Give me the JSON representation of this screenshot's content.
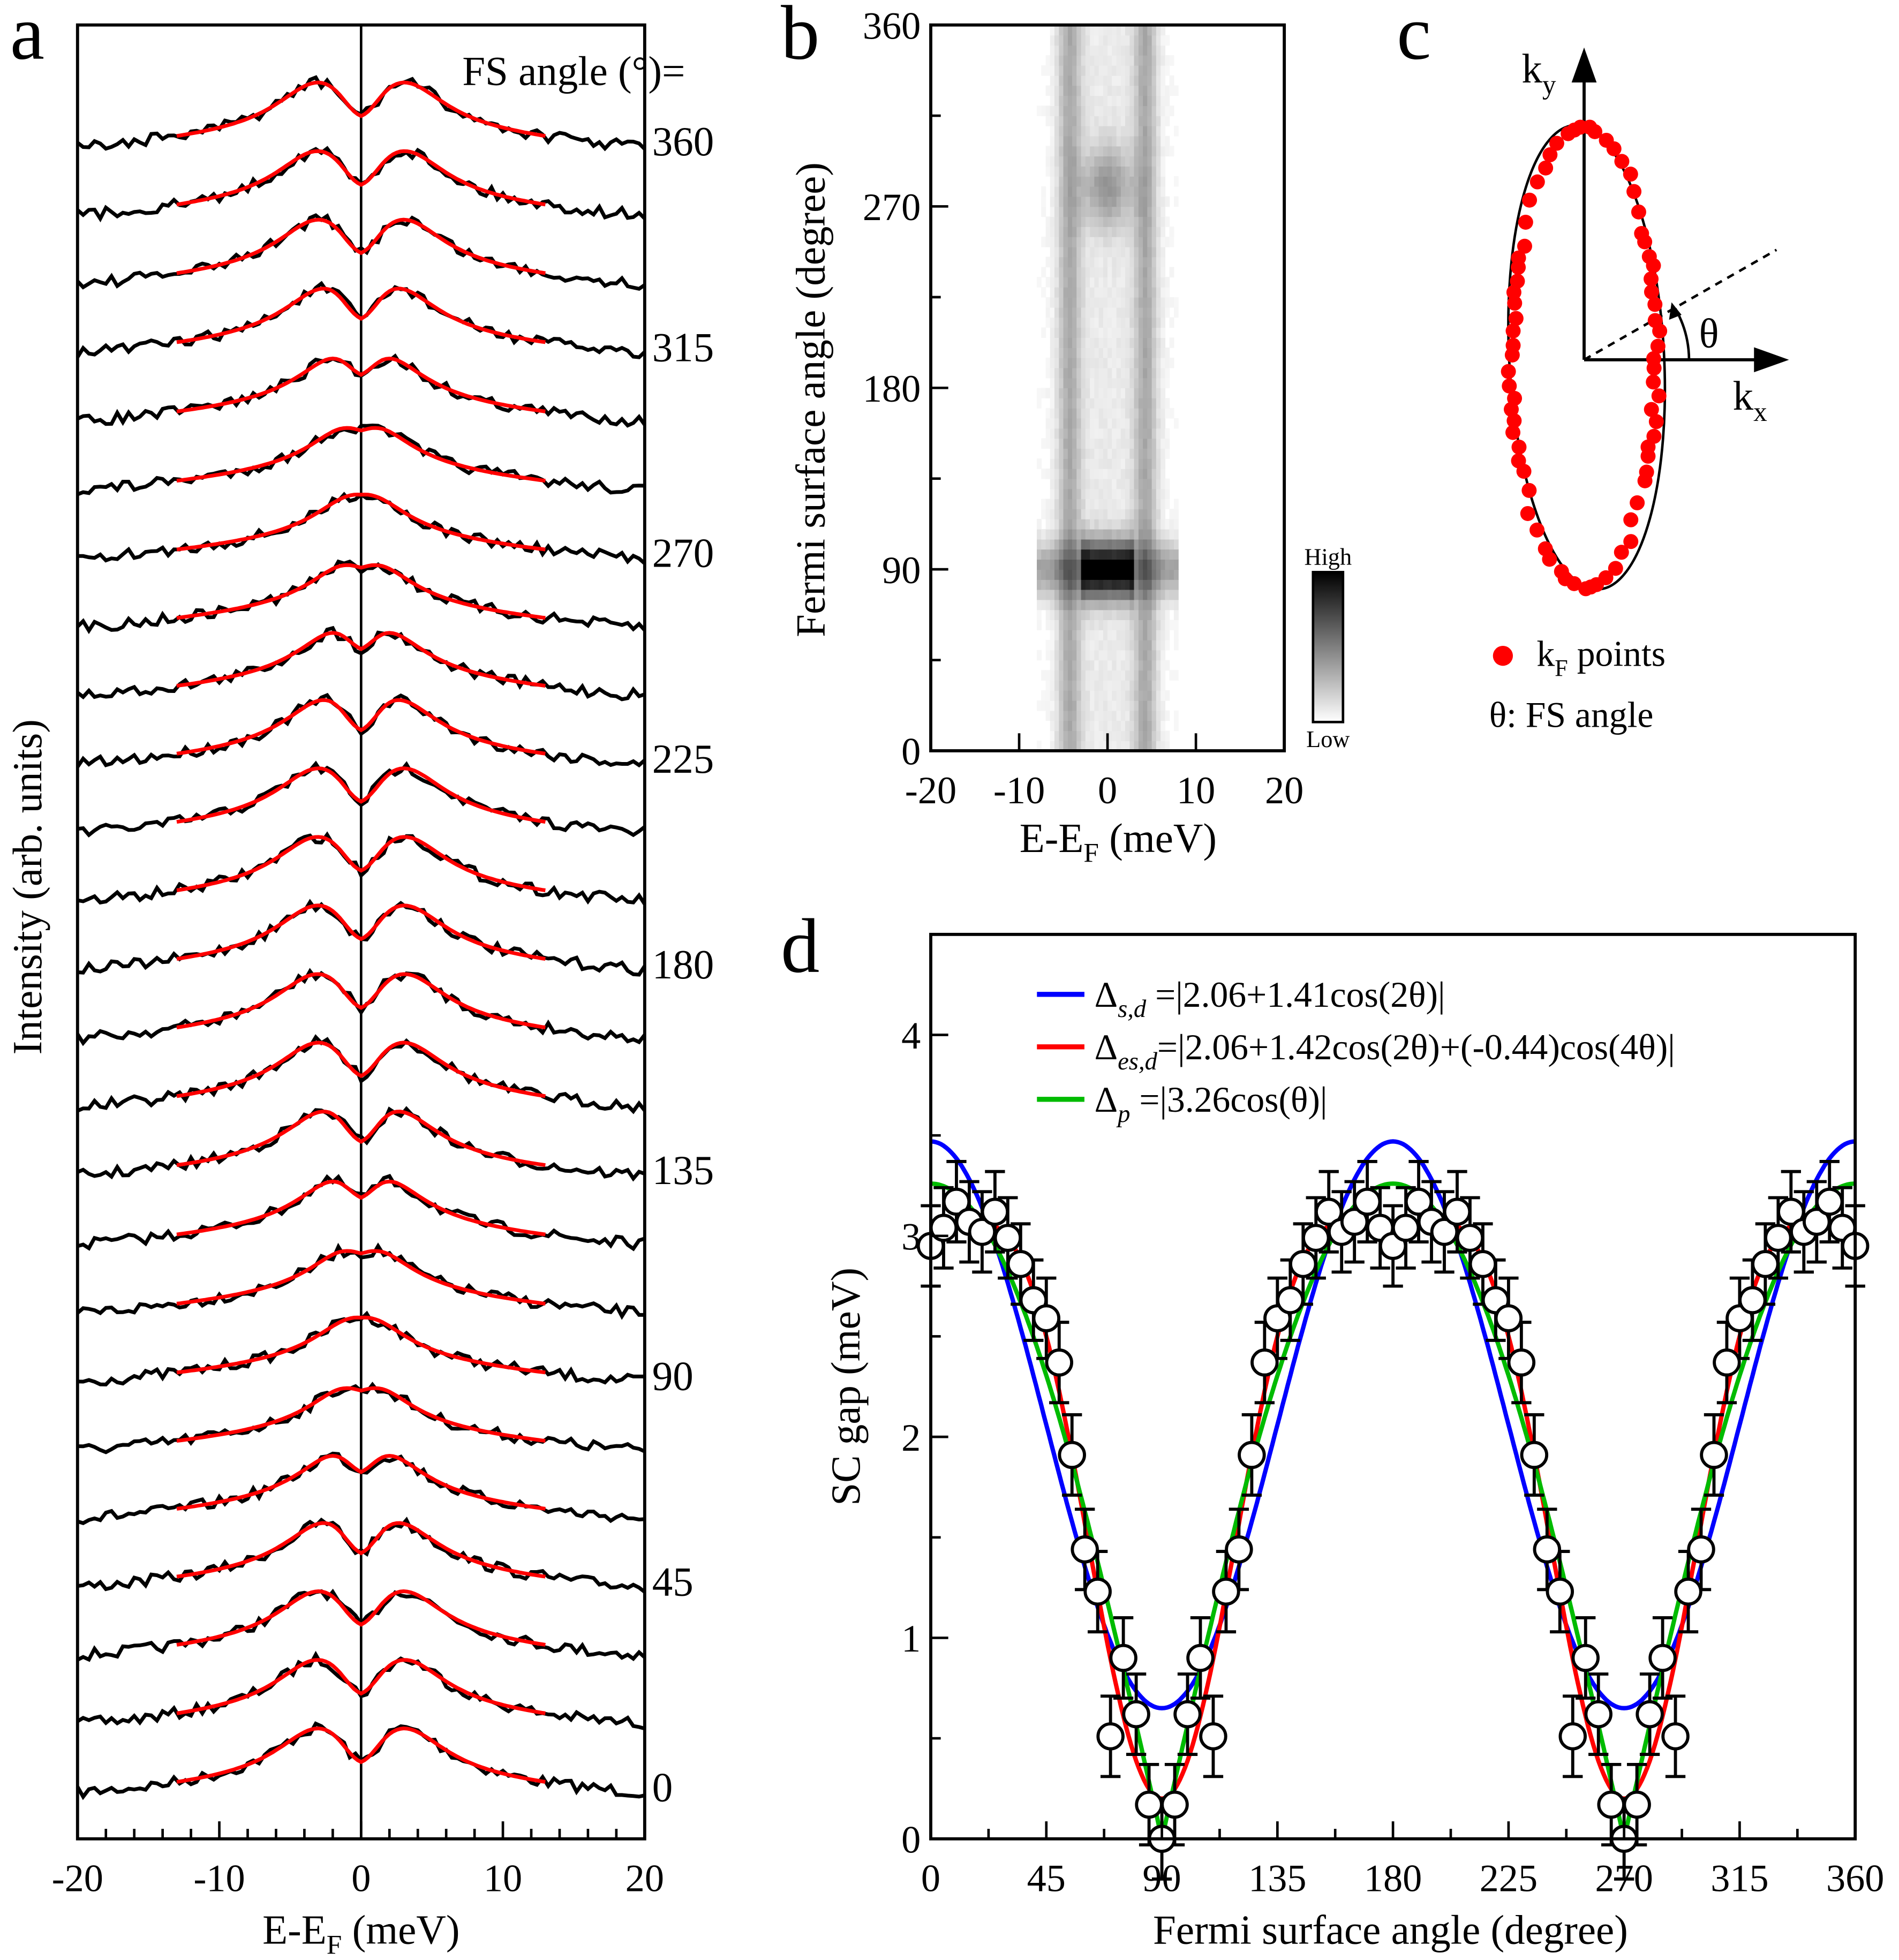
{
  "panel_letters": {
    "a": "a",
    "b": "b",
    "c": "c",
    "d": "d"
  },
  "chart_data": [
    {
      "panel": "a",
      "type": "line",
      "xlabel_main": "E-E",
      "xlabel_sub": "F",
      "xlabel_unit": " (meV)",
      "ylabel": "Intensity (arb. units)",
      "xlim": [
        -20,
        20
      ],
      "xticks": [
        "-20",
        "-10",
        "0",
        "10",
        "20"
      ],
      "xtick_values": [
        -20,
        -10,
        0,
        10,
        20
      ],
      "angle_header": "FS angle (°)=",
      "angles": [
        0,
        15,
        30,
        45,
        60,
        75,
        90,
        105,
        120,
        135,
        150,
        165,
        180,
        195,
        210,
        225,
        240,
        255,
        270,
        285,
        300,
        315,
        330,
        345,
        360
      ],
      "angle_labels": [
        {
          "angle": 0,
          "text": "0"
        },
        {
          "angle": 45,
          "text": "45"
        },
        {
          "angle": 90,
          "text": "90"
        },
        {
          "angle": 135,
          "text": "135"
        },
        {
          "angle": 180,
          "text": "180"
        },
        {
          "angle": 225,
          "text": "225"
        },
        {
          "angle": 270,
          "text": "270"
        },
        {
          "angle": 315,
          "text": "315"
        },
        {
          "angle": 360,
          "text": "360"
        }
      ],
      "fit_range": [
        -13,
        13
      ],
      "colors": {
        "data": "#000000",
        "fit": "#ff0000"
      }
    },
    {
      "panel": "b",
      "type": "heatmap",
      "xlabel_main": "E-E",
      "xlabel_sub": "F",
      "xlabel_unit": " (meV)",
      "ylabel": "Fermi surface angle (degree)",
      "xlim": [
        -20,
        20
      ],
      "ylim": [
        0,
        360
      ],
      "xticks": [
        "-20",
        "-10",
        "0",
        "10",
        "20"
      ],
      "xtick_values": [
        -20,
        -10,
        0,
        10,
        20
      ],
      "yticks": [
        "0",
        "90",
        "180",
        "270",
        "360"
      ],
      "ytick_values": [
        0,
        90,
        180,
        270,
        360
      ],
      "colorbar": {
        "high": "High",
        "low": "Low",
        "colormap": "grayscale"
      }
    },
    {
      "panel": "c",
      "type": "scatter",
      "ky_main": "k",
      "ky_sub": "y",
      "kx_main": "k",
      "kx_sub": "x",
      "theta": "θ",
      "legend": {
        "points_main": "k",
        "points_sub": "F",
        "points_rest": " points",
        "theta_text": "θ:  FS angle"
      },
      "point_color": "#ff0000"
    },
    {
      "panel": "d",
      "type": "scatter",
      "xlabel": "Fermi surface angle (degree)",
      "ylabel": "SC gap (meV)",
      "xlim": [
        0,
        360
      ],
      "ylim": [
        0,
        4.5
      ],
      "xticks": [
        "0",
        "45",
        "90",
        "135",
        "180",
        "225",
        "270",
        "315",
        "360"
      ],
      "xtick_values": [
        0,
        45,
        90,
        135,
        180,
        225,
        270,
        315,
        360
      ],
      "yticks": [
        "0",
        "1",
        "2",
        "3",
        "4"
      ],
      "ytick_values": [
        0,
        1,
        2,
        3,
        4
      ],
      "data": {
        "x": [
          0,
          5,
          10,
          15,
          20,
          25,
          30,
          35,
          40,
          45,
          50,
          55,
          60,
          65,
          70,
          75,
          80,
          85,
          90,
          95,
          100,
          105,
          110,
          115,
          120,
          125,
          130,
          135,
          140,
          145,
          150,
          155,
          160,
          165,
          170,
          175,
          180,
          185,
          190,
          195,
          200,
          205,
          210,
          215,
          220,
          225,
          230,
          235,
          240,
          245,
          250,
          255,
          260,
          265,
          270,
          275,
          280,
          285,
          290,
          295,
          300,
          305,
          310,
          315,
          320,
          325,
          330,
          335,
          340,
          345,
          350,
          355,
          360
        ],
        "y": [
          2.95,
          3.04,
          3.17,
          3.07,
          3.02,
          3.12,
          2.99,
          2.86,
          2.68,
          2.59,
          2.37,
          1.91,
          1.44,
          1.23,
          0.51,
          0.9,
          0.62,
          0.17,
          0,
          0.17,
          0.62,
          0.9,
          0.51,
          1.23,
          1.44,
          1.91,
          2.37,
          2.59,
          2.68,
          2.86,
          2.99,
          3.12,
          3.02,
          3.07,
          3.17,
          3.04,
          2.95,
          3.04,
          3.17,
          3.07,
          3.02,
          3.12,
          2.99,
          2.86,
          2.68,
          2.59,
          2.37,
          1.91,
          1.44,
          1.23,
          0.51,
          0.9,
          0.62,
          0.17,
          0,
          0.17,
          0.62,
          0.9,
          0.51,
          1.23,
          1.44,
          1.91,
          2.37,
          2.59,
          2.68,
          2.86,
          2.99,
          3.12,
          3.02,
          3.07,
          3.17,
          3.04,
          2.95
        ],
        "error": 0.2
      },
      "series": [
        {
          "sym": "Δ",
          "sub": "s,d",
          "text": " =|2.06+1.41cos(2θ)|",
          "color": "#0000ff",
          "a0": 2.06,
          "a2": 1.41,
          "a4": 0,
          "b1": 0
        },
        {
          "sym": "Δ",
          "sub": "es,d",
          "text": "=|2.06+1.42cos(2θ)+(-0.44)cos(4θ)|",
          "color": "#ff0000",
          "a0": 2.06,
          "a2": 1.42,
          "a4": -0.44,
          "b1": 0
        },
        {
          "sym": "Δ",
          "sub": "p",
          "text": " =|3.26cos(θ)|",
          "color": "#00bb00",
          "a0": 0,
          "a2": 0,
          "a4": 0,
          "b1": 3.26
        }
      ],
      "legend_position": "top-left"
    }
  ]
}
